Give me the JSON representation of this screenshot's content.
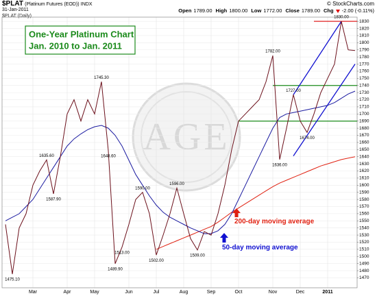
{
  "header": {
    "symbol": "$PLAT",
    "name": "(Platinum Futures (EOD))",
    "exchange": "INDX",
    "date": "31-Jan-2011",
    "source": "© StockCharts.com",
    "quote": [
      [
        "Open",
        "1789.00"
      ],
      [
        "High",
        "1800.00"
      ],
      [
        "Low",
        "1772.00"
      ],
      [
        "Close",
        "1789.00"
      ],
      [
        "Chg",
        "-2.00 (-0.11%)"
      ]
    ]
  },
  "chart_data": {
    "type": "line",
    "chart_label": "$PLAT (Daily)",
    "title": "One-Year Platinum Chart",
    "subtitle": "Jan. 2010 to Jan. 2011",
    "watermark": "AGE",
    "categories": [
      null,
      null,
      null,
      null,
      "Mar",
      null,
      null,
      null,
      null,
      "Apr",
      null,
      null,
      null,
      "May",
      null,
      null,
      null,
      null,
      "Jun",
      null,
      null,
      null,
      "Jul",
      null,
      null,
      null,
      "Aug",
      null,
      null,
      null,
      "Sep",
      null,
      null,
      null,
      "Oct",
      null,
      null,
      null,
      null,
      "Nov",
      null,
      null,
      null,
      "Dec",
      null,
      null,
      null,
      "2011",
      null,
      null,
      null,
      null
    ],
    "series": [
      {
        "color": "#6b0f1a",
        "width": 1,
        "values": [
          1545,
          1475.1,
          1540,
          1560,
          1600,
          1620,
          1635.6,
          1587.9,
          1640,
          1700,
          1720,
          1690,
          1720,
          1700,
          1745.3,
          1648.6,
          1489.9,
          1513,
          1545,
          1580,
          1590,
          1560,
          1502,
          1530,
          1560,
          1596,
          1560,
          1525,
          1509,
          1535,
          1530,
          1560,
          1600,
          1650,
          1690,
          1700,
          1710,
          1720,
          1745,
          1782,
          1636,
          1680,
          1727,
          1690,
          1674,
          1700,
          1730,
          1750,
          1770,
          1830,
          1790,
          1789
        ],
        "value_labels": [
          null,
          "1475.10",
          null,
          null,
          null,
          null,
          "1635.60",
          "1587.90",
          null,
          null,
          null,
          null,
          null,
          null,
          "1745.30",
          "1648.60",
          "1489.90",
          "1513.00",
          null,
          null,
          "1590.00",
          null,
          "1502.00",
          null,
          null,
          "1596.00",
          null,
          null,
          "1509.00",
          null,
          null,
          null,
          null,
          null,
          null,
          null,
          null,
          null,
          null,
          "1782.00",
          "1636.00",
          null,
          "1727.00",
          null,
          "1674.00",
          null,
          null,
          null,
          null,
          "1830.00",
          null,
          null
        ]
      },
      {
        "name": "50-day moving average",
        "color": "#1a1aa0",
        "width": 1,
        "values": [
          1550,
          1555,
          1560,
          1570,
          1580,
          1595,
          1610,
          1625,
          1640,
          1655,
          1665,
          1672,
          1678,
          1682,
          1684,
          1680,
          1670,
          1655,
          1635,
          1615,
          1600,
          1585,
          1572,
          1562,
          1555,
          1550,
          1545,
          1540,
          1536,
          1532,
          1532,
          1536,
          1545,
          1560,
          1580,
          1600,
          1620,
          1640,
          1660,
          1680,
          1695,
          1700,
          1702,
          1704,
          1706,
          1708,
          1710,
          1712,
          1716,
          1722,
          1728,
          1732
        ]
      },
      {
        "name": "200-day moving average",
        "color": "#e02010",
        "width": 1,
        "values": [
          null,
          null,
          null,
          null,
          null,
          null,
          null,
          null,
          null,
          null,
          null,
          null,
          null,
          null,
          null,
          null,
          null,
          null,
          null,
          null,
          null,
          null,
          1510,
          1514,
          1518,
          1522,
          1526,
          1530,
          1534,
          1538,
          1542,
          1548,
          1555,
          1562,
          1568,
          1574,
          1580,
          1586,
          1592,
          1598,
          1603,
          1607,
          1611,
          1615,
          1619,
          1623,
          1627,
          1630,
          1633,
          1636,
          1638,
          1640
        ]
      }
    ],
    "hlines": [
      {
        "value": 1830,
        "from": 45,
        "color": "#e02020"
      },
      {
        "value": 1740,
        "from": 39,
        "color": "#1a8a1a"
      },
      {
        "value": 1690,
        "from": 34,
        "color": "#1a8a1a"
      }
    ],
    "trendlines": [
      {
        "x": [
          42,
          49
        ],
        "y": [
          1727,
          1830
        ],
        "color": "#1010d0"
      },
      {
        "x": [
          42,
          51
        ],
        "y": [
          1641,
          1770
        ],
        "color": "#1010d0"
      }
    ],
    "ylim": [
      1456,
      1834
    ],
    "yticks": [
      1470,
      1480,
      1490,
      1500,
      1510,
      1520,
      1530,
      1540,
      1550,
      1560,
      1570,
      1580,
      1590,
      1600,
      1610,
      1620,
      1630,
      1640,
      1650,
      1660,
      1670,
      1680,
      1690,
      1700,
      1710,
      1720,
      1730,
      1740,
      1750,
      1760,
      1770,
      1780,
      1790,
      1800,
      1810,
      1820,
      1830
    ],
    "grid": true
  }
}
